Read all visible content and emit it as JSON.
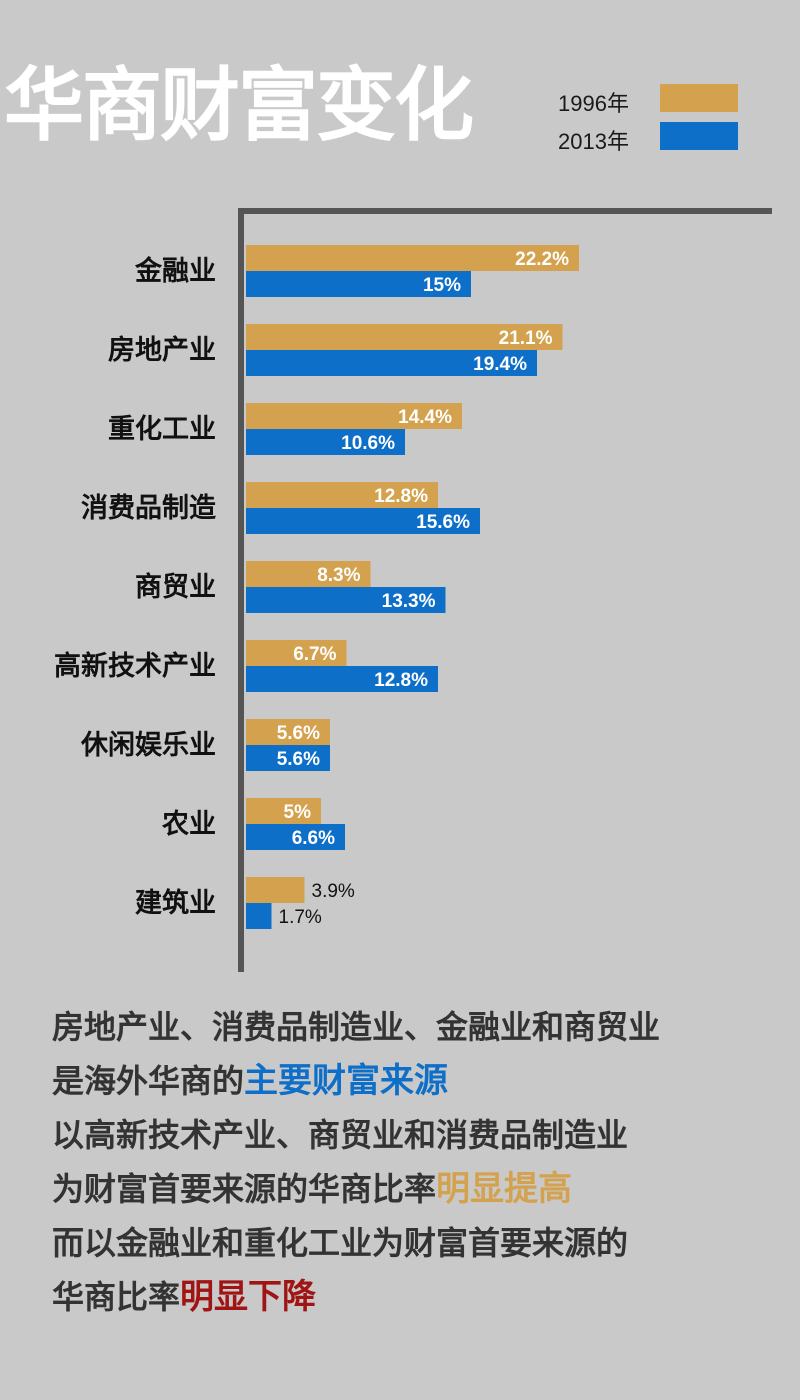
{
  "title": "华商财富变化",
  "summary": {
    "line1": "房地产业、消费品制造业、金融业和商贸业",
    "line2_prefix": "是海外华商的",
    "line2_highlight": "主要财富来源",
    "line3": "以高新技术产业、商贸业和消费品制造业",
    "line4_prefix": "为财富首要来源的华商比率",
    "line4_highlight": "明显提高",
    "line5": "而以金融业和重化工业为财富首要来源的",
    "line6_prefix": "华商比率",
    "line6_highlight": "明显下降"
  },
  "colors": {
    "background": "#c9c9c9",
    "series_1996": "#d4a24e",
    "series_2013": "#0e6fc9",
    "highlight_blue": "#0e6fc9",
    "highlight_gold": "#d4a24e",
    "highlight_red": "#a11414",
    "axis": "#555555"
  },
  "chart_data": {
    "type": "bar",
    "orientation": "horizontal",
    "categories": [
      "金融业",
      "房地产业",
      "重化工业",
      "消费品制造",
      "商贸业",
      "高新技术产业",
      "休闲娱乐业",
      "农业",
      "建筑业"
    ],
    "series": [
      {
        "name": "1996年",
        "values": [
          22.2,
          21.1,
          14.4,
          12.8,
          8.3,
          6.7,
          5.6,
          5,
          3.9
        ],
        "labels": [
          "22.2%",
          "21.1%",
          "14.4%",
          "12.8%",
          "8.3%",
          "6.7%",
          "5.6%",
          "5%",
          "3.9%"
        ],
        "color": "#d4a24e"
      },
      {
        "name": "2013年",
        "values": [
          15,
          19.4,
          10.6,
          15.6,
          13.3,
          12.8,
          5.6,
          6.6,
          1.7
        ],
        "labels": [
          "15%",
          "19.4%",
          "10.6%",
          "15.6%",
          "13.3%",
          "12.8%",
          "5.6%",
          "6.6%",
          "1.7%"
        ],
        "color": "#0e6fc9"
      }
    ],
    "legend_position": "top-right",
    "grid": false
  }
}
